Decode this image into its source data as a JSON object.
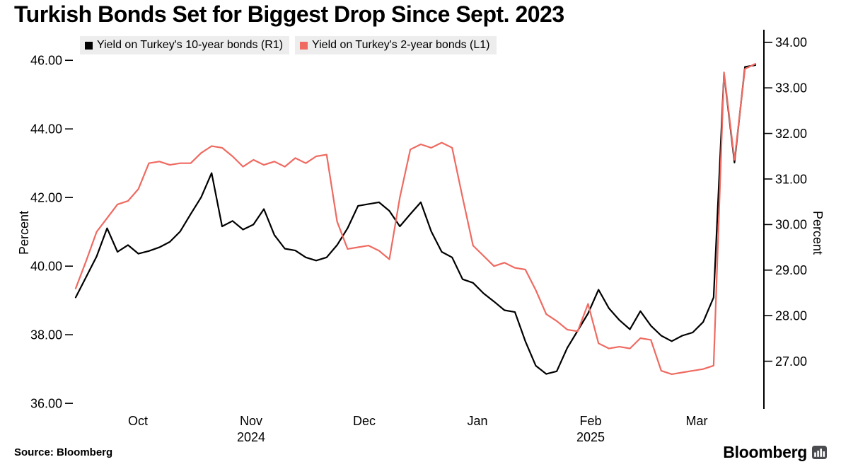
{
  "chart_data": {
    "type": "line",
    "title": "Turkish Bonds Set for Biggest Drop Since Sept. 2023",
    "grid": false,
    "legend_position": "top-left",
    "axes": {
      "left": {
        "label": "Percent",
        "min": 35.9,
        "max": 46.83,
        "ticks": [
          36,
          38,
          40,
          42,
          44,
          46
        ]
      },
      "right": {
        "label": "Percent",
        "min": 26.0,
        "max": 34.23,
        "ticks": [
          27,
          28,
          29,
          30,
          31,
          32,
          33,
          34
        ]
      }
    },
    "x_axis": {
      "months": [
        {
          "label": "Oct",
          "f": 0.0923
        },
        {
          "label": "Nov",
          "f": 0.2564
        },
        {
          "label": "Dec",
          "f": 0.4205
        },
        {
          "label": "Jan",
          "f": 0.5846
        },
        {
          "label": "Feb",
          "f": 0.7487
        },
        {
          "label": "Mar",
          "f": 0.9026
        }
      ],
      "years": [
        {
          "label": "2024",
          "f": 0.2564
        },
        {
          "label": "2025",
          "f": 0.7487
        }
      ]
    },
    "series": [
      {
        "id": "10y",
        "name": "Yield on Turkey's 10-year bonds (R1)",
        "axis": "right",
        "color": "#000000",
        "values": [
          28.4,
          28.85,
          29.3,
          29.92,
          29.4,
          29.55,
          29.36,
          29.42,
          29.5,
          29.62,
          29.85,
          30.23,
          30.6,
          31.13,
          29.96,
          30.08,
          29.89,
          30.0,
          30.34,
          29.77,
          29.47,
          29.43,
          29.28,
          29.21,
          29.28,
          29.55,
          29.92,
          30.41,
          30.45,
          30.49,
          30.3,
          29.96,
          30.23,
          30.49,
          29.85,
          29.4,
          29.28,
          28.8,
          28.72,
          28.49,
          28.31,
          28.12,
          28.08,
          27.44,
          26.9,
          26.72,
          26.78,
          27.29,
          27.67,
          28.05,
          28.57,
          28.16,
          27.9,
          27.7,
          28.1,
          27.78,
          27.56,
          27.44,
          27.56,
          27.63,
          27.86,
          28.4,
          33.31,
          31.36,
          33.46,
          33.5
        ]
      },
      {
        "id": "2y",
        "name": "Yield on Turkey's 2-year bonds (L1)",
        "axis": "left",
        "color": "#ef6a61",
        "values": [
          39.35,
          40.15,
          41.0,
          41.4,
          41.8,
          41.9,
          42.25,
          43.0,
          43.05,
          42.95,
          43.0,
          43.0,
          43.3,
          43.5,
          43.45,
          43.2,
          42.9,
          43.1,
          42.95,
          43.05,
          42.9,
          43.15,
          43.0,
          43.2,
          43.25,
          41.3,
          40.5,
          40.55,
          40.6,
          40.45,
          40.2,
          42.0,
          43.4,
          43.55,
          43.45,
          43.6,
          43.45,
          42.0,
          40.6,
          40.3,
          40.0,
          40.1,
          39.95,
          39.9,
          39.3,
          38.6,
          38.4,
          38.15,
          38.1,
          38.9,
          37.75,
          37.6,
          37.65,
          37.6,
          37.9,
          37.85,
          36.95,
          36.85,
          36.9,
          36.95,
          37.0,
          37.1,
          45.65,
          43.1,
          45.75,
          45.9
        ]
      }
    ]
  },
  "footer": {
    "source": "Source:  Bloomberg",
    "brand": "Bloomberg"
  }
}
